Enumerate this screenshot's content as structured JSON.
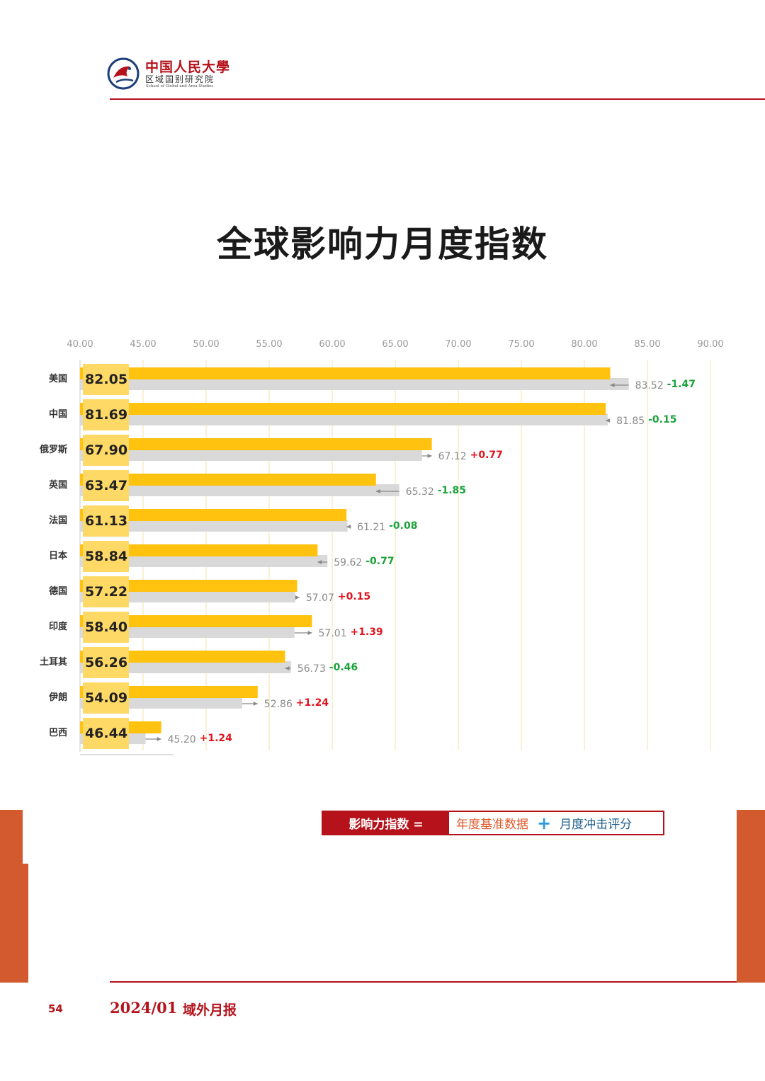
{
  "header": {
    "logo_cn": "中国人民大學",
    "logo_sub": "区域国别研究院",
    "logo_en": "School of Global and Area Studies"
  },
  "page_title": "全球影响力月度指数",
  "legend": {
    "label": "影响力指数 =",
    "part_a": "年度基准数据",
    "plus": "+",
    "part_b": "月度冲击评分"
  },
  "footer": {
    "page_number": "54",
    "date": "2024/01",
    "publication": "域外月报"
  },
  "colors": {
    "accent": "#b5121b",
    "current_bar": "#ffc20e",
    "previous_bar": "#d9d9d9",
    "value_box": "#ffd966",
    "positive": "#e0141e",
    "negative": "#1aa33a",
    "side_block": "#d25a2e"
  },
  "chart_data": {
    "type": "bar",
    "orientation": "horizontal",
    "title": "全球影响力月度指数",
    "x_ticks": [
      "40.00",
      "45.00",
      "50.00",
      "55.00",
      "60.00",
      "65.00",
      "70.00",
      "75.00",
      "80.00",
      "85.00",
      "90.00"
    ],
    "xlim": [
      40,
      90
    ],
    "grid": true,
    "categories": [
      "美国",
      "中国",
      "俄罗斯",
      "英国",
      "法国",
      "日本",
      "德国",
      "印度",
      "土耳其",
      "伊朗",
      "巴西"
    ],
    "series": [
      {
        "name": "current",
        "values": [
          82.05,
          81.69,
          67.9,
          63.47,
          61.13,
          58.84,
          57.22,
          58.4,
          56.26,
          54.09,
          46.44
        ],
        "labels": [
          "82.05",
          "81.69",
          "67.90",
          "63.47",
          "61.13",
          "58.84",
          "57.22",
          "58.40",
          "56.26",
          "54.09",
          "46.44"
        ]
      },
      {
        "name": "previous",
        "values": [
          83.52,
          81.85,
          67.12,
          65.32,
          61.21,
          59.62,
          57.07,
          57.01,
          56.73,
          52.86,
          45.2
        ],
        "labels": [
          "83.52",
          "81.85",
          "67.12",
          "65.32",
          "61.21",
          "59.62",
          "57.07",
          "57.01",
          "56.73",
          "52.86",
          "45.20"
        ]
      }
    ],
    "changes": [
      "-1.47",
      "-0.15",
      "+0.77",
      "-1.85",
      "-0.08",
      "-0.77",
      "+0.15",
      "+1.39",
      "-0.46",
      "+1.24",
      "+1.24"
    ]
  }
}
